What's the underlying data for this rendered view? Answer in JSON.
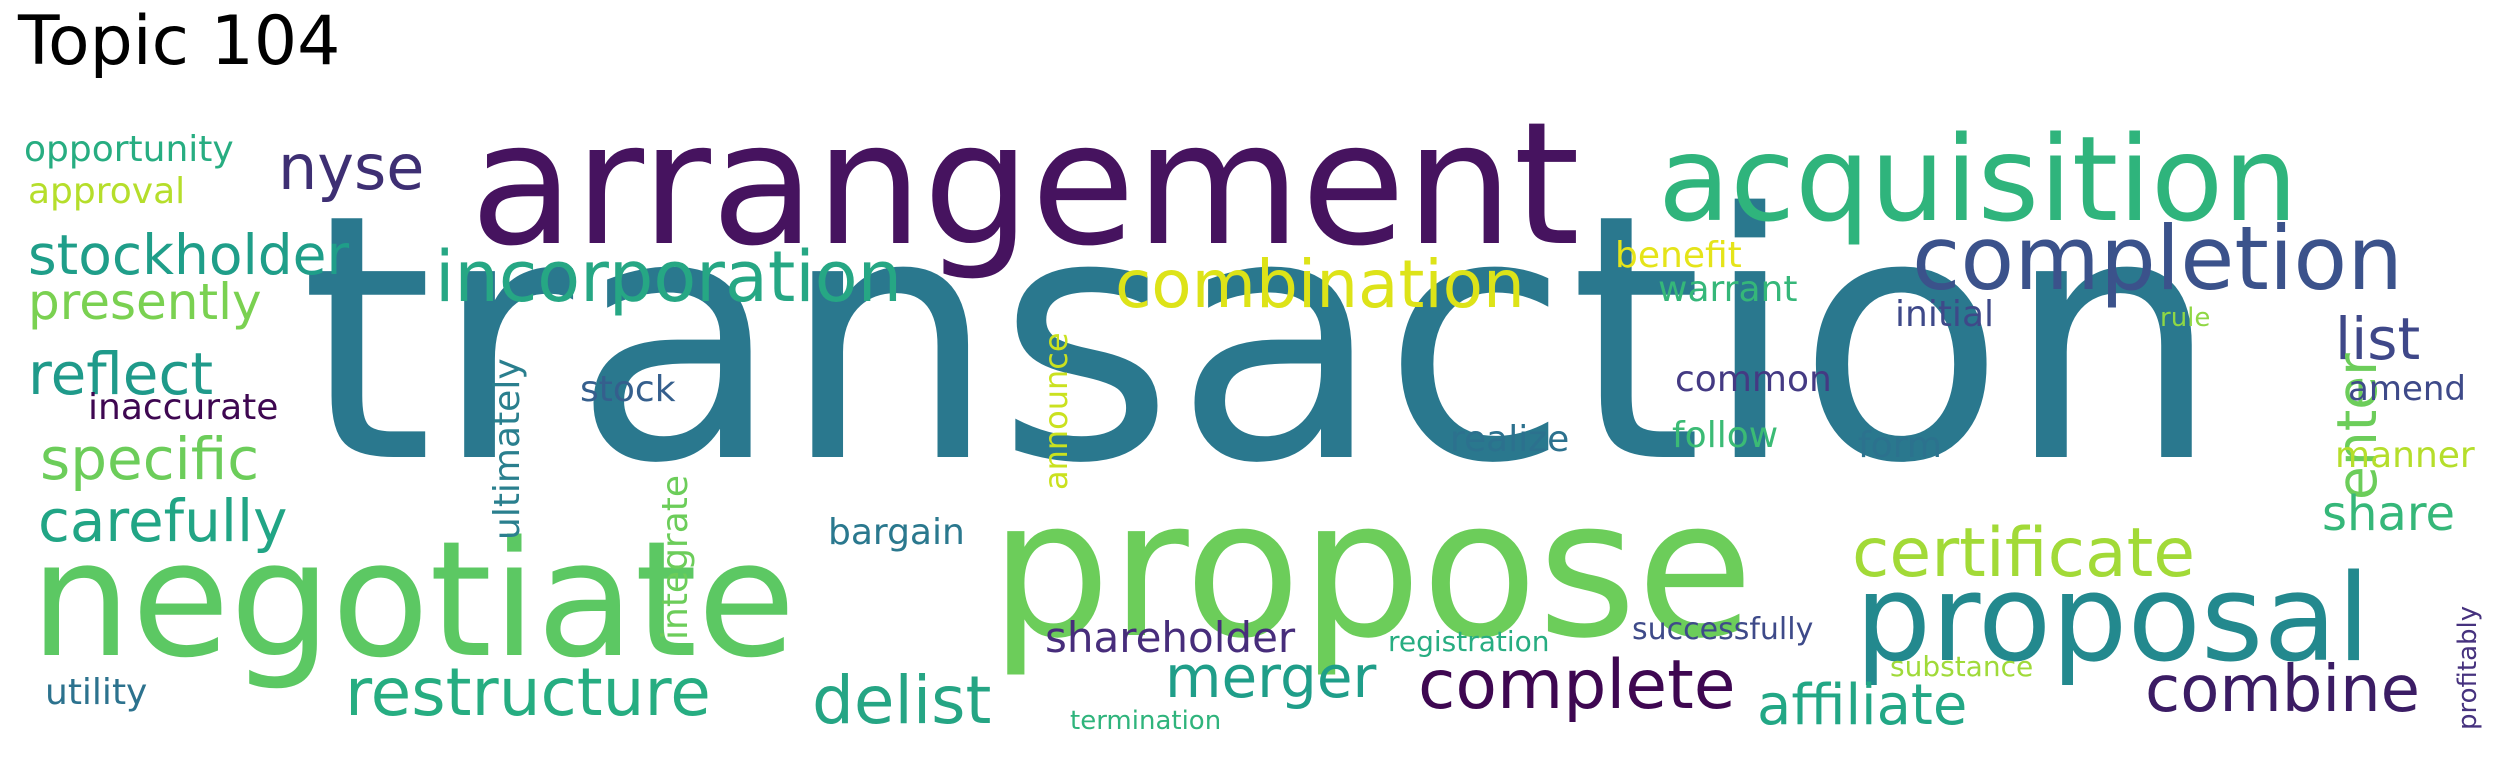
{
  "title": "Topic 104",
  "words": [
    {
      "text": "transaction",
      "color": "#2a788e"
    },
    {
      "text": "arrangement",
      "color": "#46135f"
    },
    {
      "text": "propose",
      "color": "#6ccd5a"
    },
    {
      "text": "negotiate",
      "color": "#5cc863"
    },
    {
      "text": "acquisition",
      "color": "#2fb47c"
    },
    {
      "text": "completion",
      "color": "#3b528b"
    },
    {
      "text": "proposal",
      "color": "#23898e"
    },
    {
      "text": "incorporation",
      "color": "#26a784"
    },
    {
      "text": "combination",
      "color": "#dde318"
    },
    {
      "text": "nyse",
      "color": "#3e2f73"
    },
    {
      "text": "stockholder",
      "color": "#1f9e89"
    },
    {
      "text": "presently",
      "color": "#7ad151"
    },
    {
      "text": "reflect",
      "color": "#1f9a8a"
    },
    {
      "text": "specific",
      "color": "#6ccd5a"
    },
    {
      "text": "carefully",
      "color": "#21a585"
    },
    {
      "text": "restructure",
      "color": "#26ad81"
    },
    {
      "text": "delist",
      "color": "#25a584"
    },
    {
      "text": "merger",
      "color": "#1f9e89"
    },
    {
      "text": "complete",
      "color": "#3e0751"
    },
    {
      "text": "certificate",
      "color": "#a2da37"
    },
    {
      "text": "affiliate",
      "color": "#22a785"
    },
    {
      "text": "combine",
      "color": "#3b1c64"
    },
    {
      "text": "list",
      "color": "#3f4889"
    },
    {
      "text": "enter",
      "color": "#6ccd5a"
    },
    {
      "text": "share",
      "color": "#35b779"
    },
    {
      "text": "shareholder",
      "color": "#472d7b"
    },
    {
      "text": "opportunity",
      "color": "#27ad81"
    },
    {
      "text": "approval",
      "color": "#b5de2b"
    },
    {
      "text": "inaccurate",
      "color": "#3e0751"
    },
    {
      "text": "utility",
      "color": "#2c728e"
    },
    {
      "text": "stock",
      "color": "#355f8d"
    },
    {
      "text": "ultimately",
      "color": "#2a7f8e"
    },
    {
      "text": "integrate",
      "color": "#6ccd5a"
    },
    {
      "text": "announce",
      "color": "#cae11f"
    },
    {
      "text": "bargain",
      "color": "#2a788e"
    },
    {
      "text": "realize",
      "color": "#2c718e"
    },
    {
      "text": "follow",
      "color": "#3bbb75"
    },
    {
      "text": "form",
      "color": "#2c728e"
    },
    {
      "text": "common",
      "color": "#443a83"
    },
    {
      "text": "benefit",
      "color": "#e5e419"
    },
    {
      "text": "warrant",
      "color": "#35b779"
    },
    {
      "text": "initial",
      "color": "#3e4989"
    },
    {
      "text": "rule",
      "color": "#8fd744"
    },
    {
      "text": "amend",
      "color": "#3e4a89"
    },
    {
      "text": "manner",
      "color": "#b5de2b"
    },
    {
      "text": "registration",
      "color": "#27ad81"
    },
    {
      "text": "successfully",
      "color": "#3e4a89"
    },
    {
      "text": "substance",
      "color": "#a0da39"
    },
    {
      "text": "termination",
      "color": "#2fb47c"
    },
    {
      "text": "profitably",
      "color": "#46327e"
    }
  ]
}
